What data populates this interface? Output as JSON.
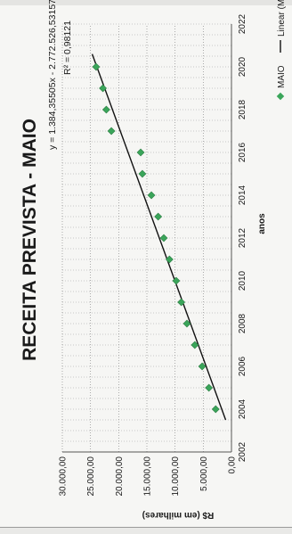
{
  "chart_data": {
    "type": "scatter",
    "title": "RECEITA PREVISTA - MAIO",
    "xlabel": "anos",
    "ylabel": "R$ (em milhares)",
    "xlim": [
      2002,
      2022
    ],
    "ylim": [
      0,
      30000
    ],
    "x_ticks": [
      "2002",
      "2004",
      "2006",
      "2008",
      "2010",
      "2012",
      "2014",
      "2016",
      "2018",
      "2020",
      "2022"
    ],
    "y_ticks": [
      "0,00",
      "5.000,00",
      "10.000,00",
      "15.000,00",
      "20.000,00",
      "25.000,00",
      "30.000,00"
    ],
    "series": [
      {
        "name": "MAIO",
        "color": "#3aa55a",
        "x": [
          2004,
          2005,
          2006,
          2007,
          2008,
          2009,
          2010,
          2011,
          2012,
          2013,
          2014,
          2015,
          2016,
          2017,
          2018,
          2019,
          2020
        ],
        "y": [
          2800,
          4000,
          5200,
          6500,
          7900,
          8900,
          9800,
          11000,
          12000,
          13000,
          14200,
          15800,
          16100,
          21300,
          22200,
          22800,
          24000
        ]
      }
    ],
    "trendline": {
      "slope": 1384.35505,
      "intercept": -2772526.53157,
      "x_range": [
        2003.5,
        2020.6
      ],
      "equation_label": "y = 1.384,35505x - 2.772.526,53157",
      "r2_label": "R² = 0,98121",
      "legend_label": "Linear (MAIO)"
    },
    "legend": "bottom"
  }
}
